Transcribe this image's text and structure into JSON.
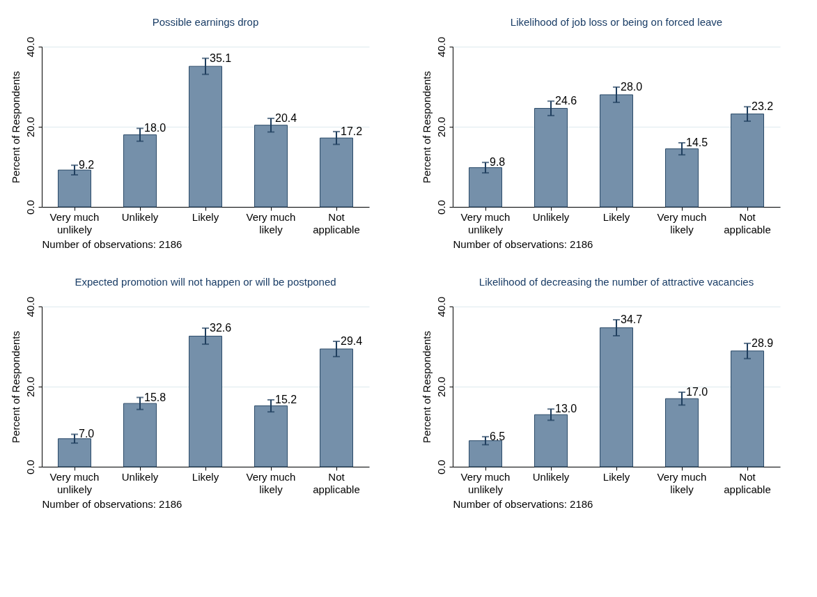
{
  "chart_data": [
    {
      "type": "bar",
      "title": "Possible earnings drop",
      "ylabel": "Percent of Respondents",
      "categories": [
        "Very much unlikely",
        "Unlikely",
        "Likely",
        "Very much likely",
        "Not applicable"
      ],
      "values": [
        9.2,
        18.0,
        35.1,
        20.4,
        17.2
      ],
      "value_labels": [
        "9.2",
        "18.0",
        "35.1",
        "20.4",
        "17.2"
      ],
      "errors": [
        1.2,
        1.6,
        2.0,
        1.7,
        1.6
      ],
      "color": "#7590aa",
      "ylim": [
        0,
        40
      ],
      "yticks": [
        {
          "value": 0,
          "label": "0.0"
        },
        {
          "value": 20,
          "label": "20.0"
        },
        {
          "value": 40,
          "label": "40.0"
        }
      ],
      "grid": "y",
      "annotations": [
        "Number of observations: 2186"
      ]
    },
    {
      "type": "bar",
      "title": "Likelihood of job loss or being on forced leave",
      "ylabel": "Percent of Respondents",
      "categories": [
        "Very much unlikely",
        "Unlikely",
        "Likely",
        "Very much likely",
        "Not applicable"
      ],
      "values": [
        9.8,
        24.6,
        28.0,
        14.5,
        23.2
      ],
      "value_labels": [
        "9.8",
        "24.6",
        "28.0",
        "14.5",
        "23.2"
      ],
      "errors": [
        1.3,
        1.8,
        1.9,
        1.5,
        1.8
      ],
      "color": "#7590aa",
      "ylim": [
        0,
        40
      ],
      "yticks": [
        {
          "value": 0,
          "label": "0.0"
        },
        {
          "value": 20,
          "label": "20.0"
        },
        {
          "value": 40,
          "label": "40.0"
        }
      ],
      "grid": "y",
      "annotations": [
        "Number of observations: 2186"
      ]
    },
    {
      "type": "bar",
      "title": "Expected promotion will not happen or will be postponed",
      "ylabel": "Percent of Respondents",
      "categories": [
        "Very much unlikely",
        "Unlikely",
        "Likely",
        "Very much likely",
        "Not applicable"
      ],
      "values": [
        7.0,
        15.8,
        32.6,
        15.2,
        29.4
      ],
      "value_labels": [
        "7.0",
        "15.8",
        "32.6",
        "15.2",
        "29.4"
      ],
      "errors": [
        1.1,
        1.5,
        2.0,
        1.5,
        1.9
      ],
      "color": "#7590aa",
      "ylim": [
        0,
        40
      ],
      "yticks": [
        {
          "value": 0,
          "label": "0.0"
        },
        {
          "value": 20,
          "label": "20.0"
        },
        {
          "value": 40,
          "label": "40.0"
        }
      ],
      "grid": "y",
      "annotations": [
        "Number of observations: 2186"
      ]
    },
    {
      "type": "bar",
      "title": "Likelihood of decreasing the number of attractive vacancies",
      "ylabel": "Percent of Respondents",
      "categories": [
        "Very much unlikely",
        "Unlikely",
        "Likely",
        "Very much likely",
        "Not applicable"
      ],
      "values": [
        6.5,
        13.0,
        34.7,
        17.0,
        28.9
      ],
      "value_labels": [
        "6.5",
        "13.0",
        "34.7",
        "17.0",
        "28.9"
      ],
      "errors": [
        1.0,
        1.4,
        2.0,
        1.6,
        1.9
      ],
      "color": "#7590aa",
      "ylim": [
        0,
        40
      ],
      "yticks": [
        {
          "value": 0,
          "label": "0.0"
        },
        {
          "value": 20,
          "label": "20.0"
        },
        {
          "value": 40,
          "label": "40.0"
        }
      ],
      "grid": "y",
      "annotations": [
        "Number of observations: 2186"
      ]
    }
  ]
}
